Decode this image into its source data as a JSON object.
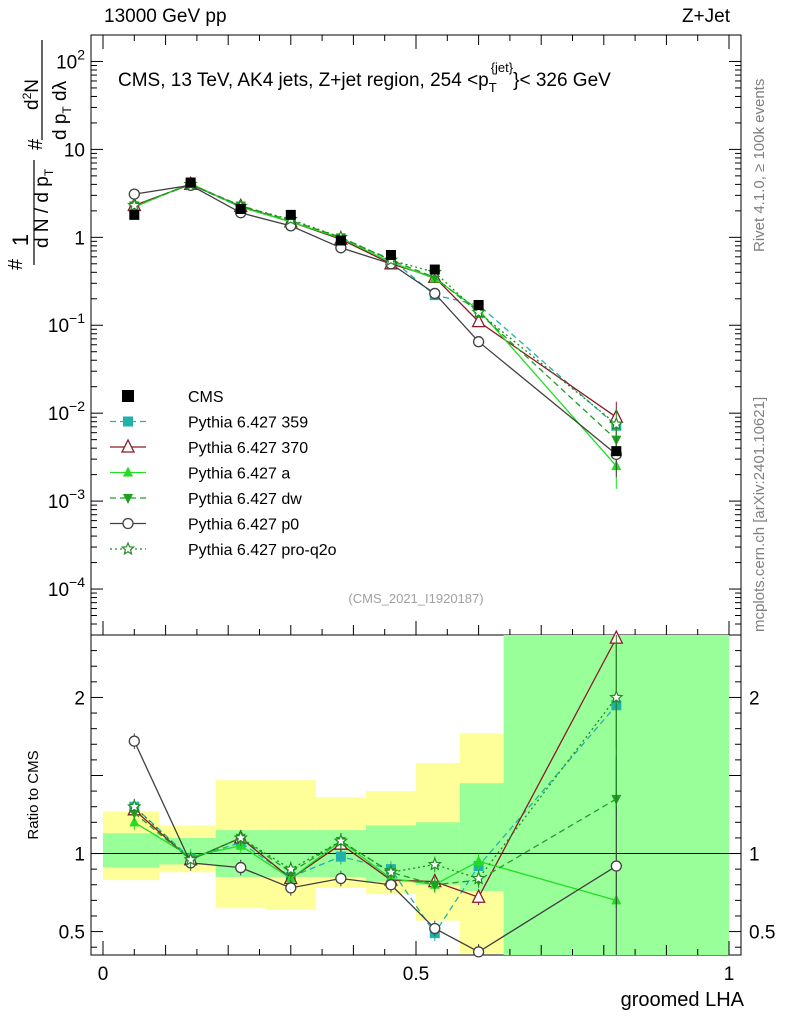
{
  "header": {
    "left": "13000 GeV pp",
    "right": "Z+Jet"
  },
  "side_labels": {
    "rivet": "Rivet 4.1.0, ≥ 100k events",
    "mcplots": "mcplots.cern.ch [arXiv:2401.10621]"
  },
  "chart_data": {
    "type": "line",
    "title": "CMS, 13 TeV, AK4 jets, Z+jet region, 254 <p_T^{jet}< 326 GeV",
    "title_parts": {
      "prefix": "CMS, 13 TeV, AK4 jets, Z+jet region, 254 <p",
      "sub": "T",
      "sup": "{jet}",
      "suffix": "}< 326 GeV"
    },
    "analysis_id": "(CMS_2021_I1920187)",
    "xlabel": "groomed LHA",
    "ylabel_main": "1/dN/dp_T d²N/dp_T dλ",
    "ylabel_ratio": "Ratio to CMS",
    "xlim": [
      0,
      1
    ],
    "ylim_main": [
      3e-05,
      200
    ],
    "ylim_ratio": [
      0.35,
      2.4
    ],
    "x_ticks": [
      "0",
      "0.5",
      "1"
    ],
    "y_ticks_main": [
      {
        "v": 100,
        "base": "10",
        "exp": "2"
      },
      {
        "v": 10,
        "base": "10",
        "exp": ""
      },
      {
        "v": 1,
        "base": "1",
        "exp": ""
      },
      {
        "v": 0.1,
        "base": "10",
        "exp": "−1"
      },
      {
        "v": 0.01,
        "base": "10",
        "exp": "−2"
      },
      {
        "v": 0.001,
        "base": "10",
        "exp": "−3"
      },
      {
        "v": 0.0001,
        "base": "10",
        "exp": "−4"
      }
    ],
    "y_ticks_ratio": [
      {
        "v": 2,
        "label": "2"
      },
      {
        "v": 1,
        "label": "1"
      },
      {
        "v": 0.5,
        "label": "0.5"
      }
    ],
    "bin_edges": [
      0,
      0.09,
      0.18,
      0.26,
      0.34,
      0.42,
      0.5,
      0.57,
      0.64,
      1.0
    ],
    "x": [
      0.05,
      0.14,
      0.22,
      0.3,
      0.38,
      0.46,
      0.53,
      0.6,
      0.82
    ],
    "data": {
      "name": "CMS",
      "values": [
        1.8,
        4.2,
        2.1,
        1.8,
        0.92,
        0.63,
        0.43,
        0.17,
        0.0037
      ],
      "band_stat": [
        [
          0.91,
          1.13
        ],
        [
          0.93,
          1.1
        ],
        [
          0.85,
          1.15
        ],
        [
          0.85,
          1.15
        ],
        [
          0.85,
          1.15
        ],
        [
          0.82,
          1.18
        ],
        [
          0.8,
          1.2
        ],
        [
          0.76,
          1.45
        ],
        [
          0.3,
          2.4
        ]
      ],
      "band_total": [
        [
          0.83,
          1.27
        ],
        [
          0.88,
          1.18
        ],
        [
          0.65,
          1.47
        ],
        [
          0.64,
          1.47
        ],
        [
          0.78,
          1.36
        ],
        [
          0.74,
          1.4
        ],
        [
          0.57,
          1.58
        ],
        [
          0.36,
          1.77
        ],
        [
          0.3,
          2.4
        ]
      ]
    },
    "series": [
      {
        "name": "Pythia 6.427 359",
        "color": "#20b2aa",
        "dash": "6,4",
        "marker": "square",
        "values": [
          2.25,
          4.0,
          2.2,
          1.55,
          0.95,
          0.57,
          0.22,
          0.17,
          0.0072
        ],
        "ratio": [
          1.3,
          0.97,
          1.07,
          0.85,
          0.98,
          0.9,
          0.49,
          0.92,
          1.95
        ]
      },
      {
        "name": "Pythia 6.427 370",
        "color": "#8b1a2a",
        "dash": "",
        "marker": "triangle-open",
        "values": [
          2.3,
          4.0,
          2.25,
          1.5,
          0.95,
          0.5,
          0.35,
          0.11,
          0.009
        ],
        "ratio": [
          1.28,
          0.96,
          1.1,
          0.84,
          1.06,
          0.83,
          0.82,
          0.72,
          2.38
        ]
      },
      {
        "name": "Pythia 6.427 a",
        "color": "#22dd22",
        "dash": "",
        "marker": "triangle",
        "values": [
          2.2,
          4.1,
          2.2,
          1.5,
          0.98,
          0.52,
          0.34,
          0.15,
          0.0025
        ],
        "ratio": [
          1.2,
          0.98,
          1.05,
          0.84,
          1.08,
          0.84,
          0.8,
          0.95,
          0.7
        ]
      },
      {
        "name": "Pythia 6.427 dw",
        "color": "#20a020",
        "dash": "6,4",
        "marker": "triangle-down",
        "values": [
          2.3,
          4.0,
          2.3,
          1.55,
          1.0,
          0.55,
          0.35,
          0.14,
          0.005
        ],
        "ratio": [
          1.26,
          0.96,
          1.1,
          0.88,
          1.08,
          0.88,
          0.8,
          0.83,
          1.35
        ]
      },
      {
        "name": "Pythia 6.427 p0",
        "color": "#404040",
        "dash": "",
        "marker": "circle-open",
        "values": [
          3.1,
          3.9,
          1.9,
          1.35,
          0.76,
          0.5,
          0.23,
          0.065,
          0.0034
        ],
        "ratio": [
          1.72,
          0.94,
          0.91,
          0.78,
          0.84,
          0.8,
          0.52,
          0.37,
          0.92
        ]
      },
      {
        "name": "Pythia 6.427 pro-q2o",
        "color": "#228b22",
        "dash": "2,3",
        "marker": "star",
        "values": [
          2.3,
          4.0,
          2.25,
          1.6,
          1.0,
          0.55,
          0.4,
          0.14,
          0.0075
        ],
        "ratio": [
          1.3,
          0.96,
          1.1,
          0.9,
          1.08,
          0.88,
          0.93,
          0.84,
          2.0
        ]
      }
    ]
  }
}
